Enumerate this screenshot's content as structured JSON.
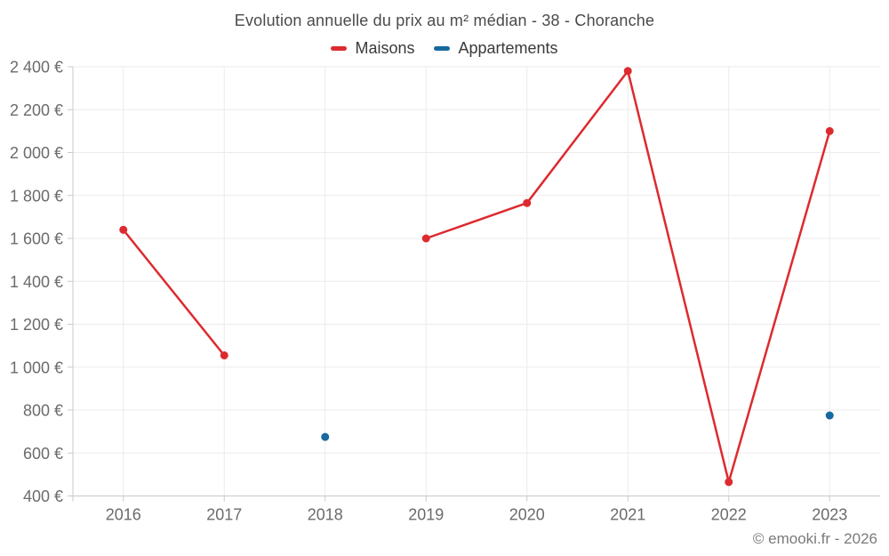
{
  "header": {
    "title": "Evolution annuelle du prix au m² médian - 38 - Choranche"
  },
  "legend": {
    "items": [
      {
        "label": "Maisons",
        "color": "#dd2a2e"
      },
      {
        "label": "Appartements",
        "color": "#17699f"
      }
    ]
  },
  "footer": {
    "credit": "© emooki.fr - 2026"
  },
  "colors": {
    "background": "#ffffff",
    "maisons": "#dd2a2e",
    "appartements": "#17699f",
    "gridline": "#ebebeb",
    "axis": "#c9c9c9",
    "title_text": "#4a4a4a",
    "tick_text": "#6b6b6b",
    "footer_text": "#7a7a7a"
  },
  "chart_data": {
    "type": "line",
    "title": "Evolution annuelle du prix au m² médian - 38 - Choranche",
    "xlabel": "",
    "ylabel": "",
    "categories": [
      "2016",
      "2017",
      "2018",
      "2019",
      "2020",
      "2021",
      "2022",
      "2023"
    ],
    "series": [
      {
        "name": "Maisons",
        "color": "#dd2a2e",
        "values": [
          1640,
          1055,
          null,
          1600,
          1765,
          2380,
          465,
          2100
        ]
      },
      {
        "name": "Appartements",
        "color": "#17699f",
        "values": [
          null,
          null,
          675,
          null,
          null,
          null,
          null,
          775
        ]
      }
    ],
    "ylim": [
      400,
      2400
    ],
    "y_tick_step": 200,
    "y_ticks": [
      {
        "value": 400,
        "label": "400 €"
      },
      {
        "value": 600,
        "label": "600 €"
      },
      {
        "value": 800,
        "label": "800 €"
      },
      {
        "value": 1000,
        "label": "1 000 €"
      },
      {
        "value": 1200,
        "label": "1 200 €"
      },
      {
        "value": 1400,
        "label": "1 400 €"
      },
      {
        "value": 1600,
        "label": "1 600 €"
      },
      {
        "value": 1800,
        "label": "1 800 €"
      },
      {
        "value": 2000,
        "label": "2 000 €"
      },
      {
        "value": 2200,
        "label": "2 200 €"
      },
      {
        "value": 2400,
        "label": "2 400 €"
      }
    ],
    "grid": true,
    "legend_position": "top",
    "currency_symbol": "€"
  }
}
